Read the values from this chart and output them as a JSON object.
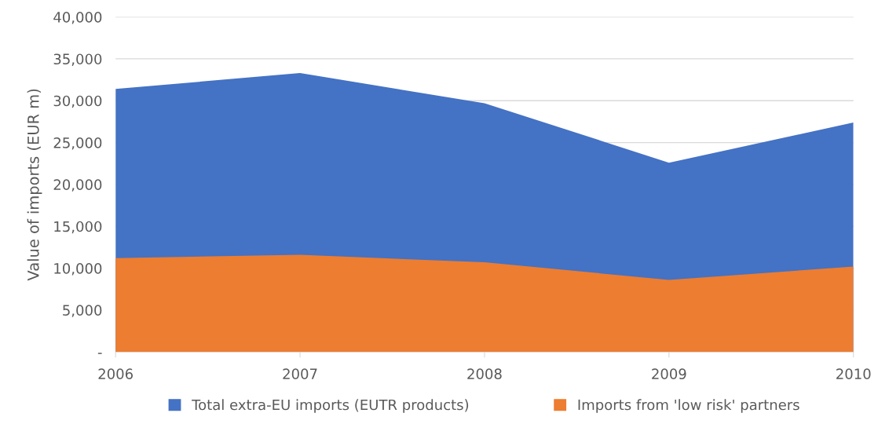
{
  "chart_data": {
    "type": "area",
    "ylabel": "Value of imports (EUR m)",
    "categories": [
      "2006",
      "2007",
      "2008",
      "2009",
      "2010"
    ],
    "series": [
      {
        "name": "Total extra-EU imports (EUTR products)",
        "color": "#4472c4",
        "values": [
          31400,
          33300,
          29700,
          22600,
          27400
        ]
      },
      {
        "name": "Imports from 'low risk' partners",
        "color": "#ed7d31",
        "values": [
          11200,
          11600,
          10700,
          8600,
          10200
        ]
      }
    ],
    "ylim": [
      0,
      40000
    ],
    "yticks": [
      {
        "value": 0,
        "label": "-"
      },
      {
        "value": 5000,
        "label": "5,000"
      },
      {
        "value": 10000,
        "label": "10,000"
      },
      {
        "value": 15000,
        "label": "15,000"
      },
      {
        "value": 20000,
        "label": "20,000"
      },
      {
        "value": 25000,
        "label": "25,000"
      },
      {
        "value": 30000,
        "label": "30,000"
      },
      {
        "value": 35000,
        "label": "35,000"
      },
      {
        "value": 40000,
        "label": "40,000"
      }
    ],
    "grid": "y",
    "legend": "bottom"
  }
}
